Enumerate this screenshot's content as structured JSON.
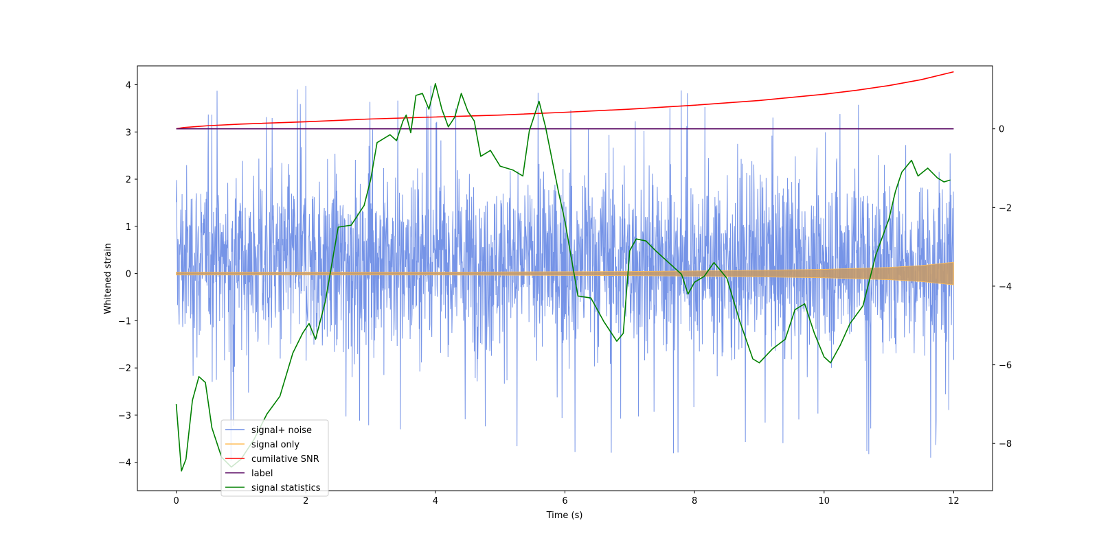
{
  "chart_data": {
    "type": "line",
    "xlabel": "Time (s)",
    "ylabel": "Whitened strain",
    "xlim": [
      -0.6,
      12.6
    ],
    "ylim": [
      -4.6,
      4.4
    ],
    "y2lim": [
      -9.2,
      1.6
    ],
    "xticks": [
      0,
      2,
      4,
      6,
      8,
      10,
      12
    ],
    "yticks": [
      -4,
      -3,
      -2,
      -1,
      0,
      1,
      2,
      3,
      4
    ],
    "y2ticks": [
      -8,
      -6,
      -4,
      -2,
      0
    ],
    "legend_position": "lower-left",
    "legend": [
      {
        "label": "signal+ noise",
        "color": "#6f8ee6"
      },
      {
        "label": "signal only",
        "color": "#ffbe5a"
      },
      {
        "label": "cumilative SNR",
        "color": "#ff0000"
      },
      {
        "label": "label",
        "color": "#5a0a64"
      },
      {
        "label": "signal statistics",
        "color": "#008000"
      }
    ],
    "noise": {
      "name": "signal+ noise",
      "axis": "left",
      "x_range": [
        0,
        12
      ],
      "typical_envelope": [
        -2.0,
        2.5
      ],
      "peak_max": 4.0,
      "peak_min": -4.15
    },
    "signal_envelope": {
      "name": "signal only",
      "axis": "left",
      "x": [
        0,
        2,
        4,
        5,
        6,
        7,
        8,
        9,
        10,
        11,
        11.5,
        12
      ],
      "amp": [
        0.03,
        0.03,
        0.03,
        0.035,
        0.04,
        0.045,
        0.055,
        0.07,
        0.09,
        0.13,
        0.17,
        0.24
      ]
    },
    "series": [
      {
        "name": "cumilative SNR",
        "axis": "right",
        "x": [
          0,
          0.1,
          0.5,
          1,
          2,
          3,
          4,
          5,
          6,
          7,
          8,
          9,
          10,
          10.5,
          11,
          11.5,
          12
        ],
        "y": [
          0.0,
          0.03,
          0.08,
          0.12,
          0.18,
          0.25,
          0.3,
          0.35,
          0.42,
          0.5,
          0.6,
          0.72,
          0.88,
          0.98,
          1.1,
          1.25,
          1.45
        ]
      },
      {
        "name": "label",
        "axis": "right",
        "x": [
          0,
          12
        ],
        "y": [
          0,
          0
        ]
      },
      {
        "name": "signal statistics",
        "axis": "right",
        "x": [
          0,
          0.08,
          0.15,
          0.25,
          0.35,
          0.45,
          0.55,
          0.7,
          0.85,
          1.0,
          1.2,
          1.4,
          1.6,
          1.8,
          1.95,
          2.05,
          2.15,
          2.3,
          2.5,
          2.7,
          2.9,
          3.0,
          3.1,
          3.3,
          3.4,
          3.5,
          3.55,
          3.62,
          3.7,
          3.8,
          3.9,
          4.0,
          4.1,
          4.2,
          4.3,
          4.4,
          4.5,
          4.6,
          4.7,
          4.85,
          5.0,
          5.2,
          5.35,
          5.45,
          5.6,
          5.7,
          5.9,
          6.0,
          6.2,
          6.4,
          6.6,
          6.8,
          6.9,
          7.0,
          7.1,
          7.25,
          7.4,
          7.6,
          7.8,
          7.9,
          8.0,
          8.15,
          8.3,
          8.5,
          8.7,
          8.9,
          9.0,
          9.2,
          9.4,
          9.55,
          9.7,
          9.85,
          10.0,
          10.1,
          10.25,
          10.4,
          10.6,
          10.8,
          11.0,
          11.1,
          11.2,
          11.35,
          11.45,
          11.6,
          11.75,
          11.85,
          11.95
        ],
        "y": [
          -7.0,
          -8.7,
          -8.4,
          -6.9,
          -6.3,
          -6.45,
          -7.6,
          -8.35,
          -8.6,
          -8.4,
          -7.9,
          -7.25,
          -6.8,
          -5.7,
          -5.2,
          -4.95,
          -5.35,
          -4.4,
          -2.5,
          -2.45,
          -1.95,
          -1.3,
          -0.35,
          -0.15,
          -0.3,
          0.2,
          0.35,
          -0.1,
          0.85,
          0.9,
          0.5,
          1.15,
          0.5,
          0.05,
          0.3,
          0.9,
          0.45,
          0.2,
          -0.7,
          -0.55,
          -0.95,
          -1.05,
          -1.2,
          -0.05,
          0.7,
          0.05,
          -1.6,
          -2.35,
          -4.25,
          -4.3,
          -4.9,
          -5.4,
          -5.2,
          -3.1,
          -2.8,
          -2.85,
          -3.1,
          -3.4,
          -3.7,
          -4.2,
          -3.9,
          -3.75,
          -3.4,
          -3.8,
          -4.9,
          -5.85,
          -5.95,
          -5.6,
          -5.35,
          -4.6,
          -4.45,
          -5.2,
          -5.8,
          -5.95,
          -5.5,
          -4.95,
          -4.5,
          -3.2,
          -2.3,
          -1.6,
          -1.1,
          -0.8,
          -1.2,
          -1.0,
          -1.25,
          -1.35,
          -1.3
        ]
      }
    ]
  }
}
